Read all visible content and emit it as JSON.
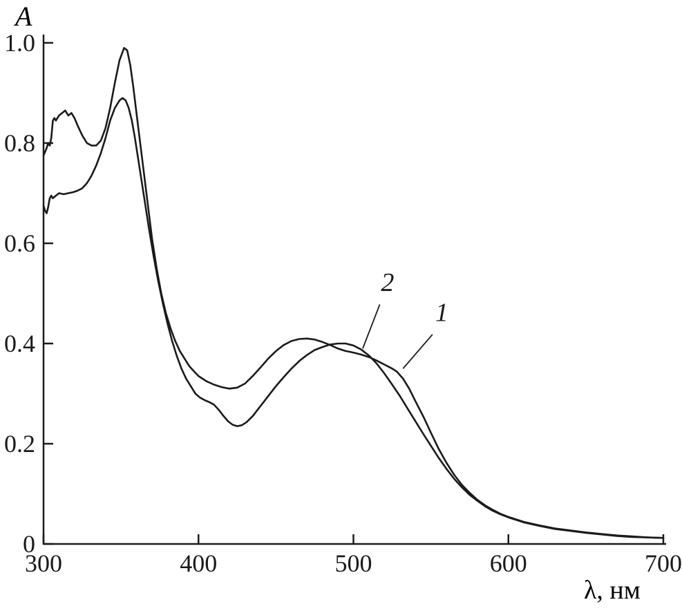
{
  "chart_data": {
    "type": "line",
    "title": "",
    "xlabel": "λ, нм",
    "ylabel": "A",
    "xlim": [
      300,
      700
    ],
    "ylim": [
      0,
      1.0
    ],
    "x_ticks": [
      "300",
      "400",
      "500",
      "600",
      "700"
    ],
    "x_tick_values": [
      300,
      400,
      500,
      600,
      700
    ],
    "y_ticks": [
      "0",
      "0.2",
      "0.4",
      "0.6",
      "0.8",
      "1.0"
    ],
    "y_tick_values": [
      0,
      0.2,
      0.4,
      0.6,
      0.8,
      1.0
    ],
    "grid": false,
    "legend": "none",
    "line_color": "#1a1a1a",
    "series": [
      {
        "name": "1",
        "points": [
          [
            300,
            0.775
          ],
          [
            302,
            0.79
          ],
          [
            303,
            0.8
          ],
          [
            304,
            0.795
          ],
          [
            305,
            0.81
          ],
          [
            306,
            0.845
          ],
          [
            307,
            0.85
          ],
          [
            308,
            0.845
          ],
          [
            310,
            0.855
          ],
          [
            312,
            0.86
          ],
          [
            314,
            0.865
          ],
          [
            316,
            0.855
          ],
          [
            318,
            0.86
          ],
          [
            320,
            0.85
          ],
          [
            322,
            0.835
          ],
          [
            325,
            0.815
          ],
          [
            328,
            0.8
          ],
          [
            331,
            0.795
          ],
          [
            334,
            0.795
          ],
          [
            337,
            0.805
          ],
          [
            340,
            0.83
          ],
          [
            343,
            0.87
          ],
          [
            346,
            0.92
          ],
          [
            349,
            0.965
          ],
          [
            352,
            0.99
          ],
          [
            354,
            0.985
          ],
          [
            356,
            0.955
          ],
          [
            358,
            0.91
          ],
          [
            360,
            0.86
          ],
          [
            362,
            0.81
          ],
          [
            364,
            0.76
          ],
          [
            366,
            0.71
          ],
          [
            368,
            0.66
          ],
          [
            370,
            0.61
          ],
          [
            373,
            0.55
          ],
          [
            376,
            0.5
          ],
          [
            379,
            0.46
          ],
          [
            382,
            0.43
          ],
          [
            385,
            0.405
          ],
          [
            388,
            0.385
          ],
          [
            391,
            0.37
          ],
          [
            394,
            0.355
          ],
          [
            397,
            0.345
          ],
          [
            400,
            0.335
          ],
          [
            405,
            0.325
          ],
          [
            410,
            0.318
          ],
          [
            415,
            0.313
          ],
          [
            420,
            0.31
          ],
          [
            425,
            0.312
          ],
          [
            430,
            0.32
          ],
          [
            435,
            0.335
          ],
          [
            440,
            0.352
          ],
          [
            445,
            0.37
          ],
          [
            450,
            0.385
          ],
          [
            455,
            0.397
          ],
          [
            460,
            0.405
          ],
          [
            465,
            0.409
          ],
          [
            470,
            0.41
          ],
          [
            475,
            0.408
          ],
          [
            480,
            0.403
          ],
          [
            485,
            0.397
          ],
          [
            490,
            0.39
          ],
          [
            495,
            0.385
          ],
          [
            500,
            0.382
          ],
          [
            505,
            0.378
          ],
          [
            510,
            0.373
          ],
          [
            515,
            0.366
          ],
          [
            520,
            0.358
          ],
          [
            525,
            0.35
          ],
          [
            528,
            0.344
          ],
          [
            532,
            0.33
          ],
          [
            536,
            0.31
          ],
          [
            540,
            0.285
          ],
          [
            545,
            0.255
          ],
          [
            550,
            0.222
          ],
          [
            555,
            0.19
          ],
          [
            560,
            0.162
          ],
          [
            565,
            0.138
          ],
          [
            570,
            0.118
          ],
          [
            575,
            0.102
          ],
          [
            580,
            0.088
          ],
          [
            585,
            0.077
          ],
          [
            590,
            0.068
          ],
          [
            595,
            0.06
          ],
          [
            600,
            0.054
          ],
          [
            610,
            0.044
          ],
          [
            620,
            0.037
          ],
          [
            630,
            0.031
          ],
          [
            640,
            0.027
          ],
          [
            650,
            0.023
          ],
          [
            660,
            0.02
          ],
          [
            670,
            0.017
          ],
          [
            680,
            0.015
          ],
          [
            690,
            0.013
          ],
          [
            700,
            0.012
          ]
        ]
      },
      {
        "name": "2",
        "points": [
          [
            300,
            0.675
          ],
          [
            301,
            0.665
          ],
          [
            302,
            0.66
          ],
          [
            303,
            0.672
          ],
          [
            304,
            0.69
          ],
          [
            305,
            0.695
          ],
          [
            306,
            0.69
          ],
          [
            308,
            0.695
          ],
          [
            310,
            0.7
          ],
          [
            313,
            0.698
          ],
          [
            316,
            0.7
          ],
          [
            319,
            0.702
          ],
          [
            322,
            0.705
          ],
          [
            325,
            0.71
          ],
          [
            328,
            0.72
          ],
          [
            331,
            0.735
          ],
          [
            334,
            0.755
          ],
          [
            337,
            0.78
          ],
          [
            340,
            0.81
          ],
          [
            343,
            0.845
          ],
          [
            346,
            0.87
          ],
          [
            349,
            0.885
          ],
          [
            351,
            0.89
          ],
          [
            353,
            0.885
          ],
          [
            355,
            0.87
          ],
          [
            357,
            0.845
          ],
          [
            359,
            0.81
          ],
          [
            361,
            0.77
          ],
          [
            363,
            0.73
          ],
          [
            365,
            0.69
          ],
          [
            368,
            0.63
          ],
          [
            371,
            0.575
          ],
          [
            374,
            0.525
          ],
          [
            377,
            0.48
          ],
          [
            380,
            0.44
          ],
          [
            383,
            0.405
          ],
          [
            386,
            0.375
          ],
          [
            389,
            0.35
          ],
          [
            392,
            0.33
          ],
          [
            395,
            0.315
          ],
          [
            398,
            0.3
          ],
          [
            401,
            0.292
          ],
          [
            404,
            0.287
          ],
          [
            407,
            0.283
          ],
          [
            410,
            0.278
          ],
          [
            413,
            0.268
          ],
          [
            416,
            0.256
          ],
          [
            419,
            0.245
          ],
          [
            422,
            0.238
          ],
          [
            425,
            0.235
          ],
          [
            428,
            0.237
          ],
          [
            431,
            0.243
          ],
          [
            435,
            0.255
          ],
          [
            440,
            0.275
          ],
          [
            445,
            0.295
          ],
          [
            450,
            0.315
          ],
          [
            455,
            0.333
          ],
          [
            460,
            0.35
          ],
          [
            465,
            0.365
          ],
          [
            470,
            0.377
          ],
          [
            475,
            0.387
          ],
          [
            480,
            0.393
          ],
          [
            485,
            0.398
          ],
          [
            490,
            0.4
          ],
          [
            495,
            0.4
          ],
          [
            500,
            0.396
          ],
          [
            505,
            0.388
          ],
          [
            510,
            0.376
          ],
          [
            515,
            0.36
          ],
          [
            520,
            0.34
          ],
          [
            525,
            0.318
          ],
          [
            530,
            0.295
          ],
          [
            535,
            0.27
          ],
          [
            540,
            0.245
          ],
          [
            545,
            0.22
          ],
          [
            550,
            0.196
          ],
          [
            555,
            0.172
          ],
          [
            560,
            0.15
          ],
          [
            565,
            0.13
          ],
          [
            570,
            0.113
          ],
          [
            575,
            0.098
          ],
          [
            580,
            0.086
          ],
          [
            585,
            0.075
          ],
          [
            590,
            0.066
          ],
          [
            595,
            0.059
          ],
          [
            600,
            0.053
          ],
          [
            610,
            0.043
          ],
          [
            620,
            0.036
          ],
          [
            630,
            0.03
          ],
          [
            640,
            0.026
          ],
          [
            650,
            0.022
          ],
          [
            660,
            0.019
          ],
          [
            670,
            0.016
          ],
          [
            680,
            0.014
          ],
          [
            690,
            0.013
          ],
          [
            700,
            0.012
          ]
        ]
      }
    ],
    "annotations": [
      {
        "text": "2",
        "tx": 522,
        "ty": 0.505,
        "lx1": 517,
        "ly1": 0.478,
        "lx2": 506,
        "ly2": 0.39
      },
      {
        "text": "1",
        "tx": 557,
        "ty": 0.445,
        "lx1": 551,
        "ly1": 0.418,
        "lx2": 532,
        "ly2": 0.35
      }
    ]
  }
}
